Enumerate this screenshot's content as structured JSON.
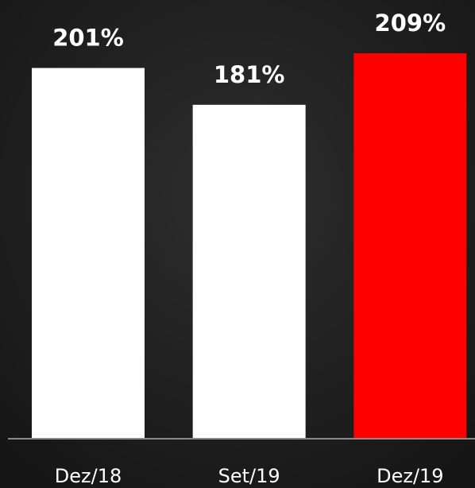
{
  "chart_data": {
    "type": "bar",
    "categories": [
      "Dez/18",
      "Set/19",
      "Dez/19"
    ],
    "values": [
      201,
      181,
      209
    ],
    "value_labels": [
      "201%",
      "181%",
      "209%"
    ],
    "colors": [
      "#ffffff",
      "#ffffff",
      "#ff0000"
    ]
  }
}
